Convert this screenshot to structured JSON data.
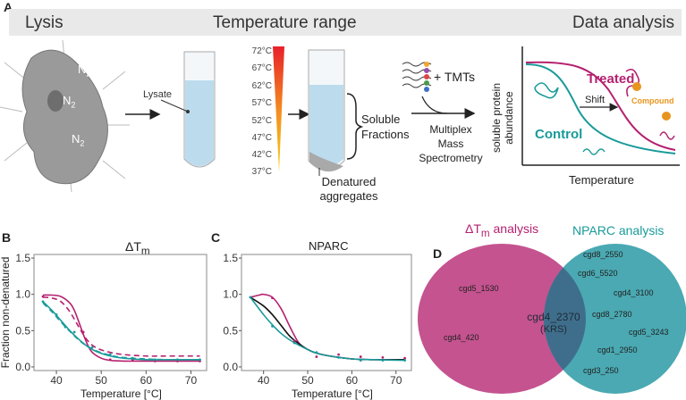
{
  "panels": {
    "a": "A",
    "b": "B",
    "c": "C",
    "d": "D"
  },
  "workflow": {
    "headers": [
      "Lysis",
      "Temperature range",
      "Data analysis"
    ],
    "n2": [
      "N",
      "N",
      "N"
    ],
    "n2_sub": "2",
    "lysate": "Lysate",
    "temperatures": [
      "72°C",
      "67°C",
      "62°C",
      "57°C",
      "52°C",
      "47°C",
      "42°C",
      "37°C"
    ],
    "soluble": [
      "Soluble",
      "Fractions"
    ],
    "denatured": [
      "Denatured",
      "aggregates"
    ],
    "tmts": "+ TMTs",
    "ms": [
      "Multiplex",
      "Mass",
      "Spectrometry"
    ],
    "analysis": {
      "ylabel": [
        "soluble protein",
        "abundance"
      ],
      "xlabel": "Temperature",
      "treated": "Treated",
      "control": "Control",
      "shift": "Shift",
      "compound": "Compound"
    },
    "colors": {
      "treated": "#b5206f",
      "control": "#1a9a9a",
      "compound": "#e8951e"
    }
  },
  "chart_data": [
    {
      "type": "line",
      "title": "ΔT",
      "title_sub": "m",
      "xlabel": "Temperature [°C]",
      "ylabel": "Fraction non-denatured",
      "xlim": [
        35,
        73.5
      ],
      "ylim": [
        -0.05,
        1.55
      ],
      "xticks": [
        40,
        50,
        60,
        70
      ],
      "yticks": [
        "0.0",
        "0.5",
        "1.0",
        "1.5"
      ],
      "series": [
        {
          "name": "treated-fit",
          "color": "#b5206f",
          "dash": false,
          "x": [
            37,
            39,
            41,
            43,
            44,
            45,
            46,
            47,
            48,
            50,
            52,
            55,
            60,
            65,
            72
          ],
          "y": [
            0.99,
            0.99,
            0.97,
            0.88,
            0.78,
            0.62,
            0.45,
            0.3,
            0.2,
            0.12,
            0.09,
            0.08,
            0.08,
            0.08,
            0.08
          ]
        },
        {
          "name": "treated-fit-2",
          "color": "#b5206f",
          "dash": true,
          "x": [
            37,
            39,
            41,
            43,
            45,
            47,
            49,
            52,
            55,
            60,
            65,
            72
          ],
          "y": [
            0.96,
            0.95,
            0.9,
            0.76,
            0.55,
            0.36,
            0.26,
            0.2,
            0.17,
            0.15,
            0.15,
            0.15
          ]
        },
        {
          "name": "control-fit",
          "color": "#1a9a9a",
          "dash": false,
          "x": [
            37,
            39,
            41,
            43,
            45,
            47,
            49,
            52,
            55,
            60,
            65,
            72
          ],
          "y": [
            0.9,
            0.78,
            0.64,
            0.5,
            0.38,
            0.28,
            0.21,
            0.15,
            0.12,
            0.1,
            0.1,
            0.1
          ]
        },
        {
          "name": "control-fit-2",
          "color": "#1a9a9a",
          "dash": true,
          "x": [
            37,
            39,
            41,
            43,
            45,
            47,
            49,
            52,
            55,
            60,
            65,
            72
          ],
          "y": [
            0.88,
            0.76,
            0.62,
            0.49,
            0.37,
            0.28,
            0.22,
            0.16,
            0.13,
            0.11,
            0.1,
            0.1
          ]
        }
      ],
      "points": [
        {
          "color": "#b5206f",
          "x": [
            37,
            46,
            52,
            57,
            62,
            67,
            72
          ],
          "y": [
            0.97,
            0.48,
            0.1,
            0.09,
            0.08,
            0.08,
            0.08
          ]
        },
        {
          "color": "#1a9a9a",
          "x": [
            37,
            40,
            42,
            44,
            48,
            52,
            57,
            62,
            67,
            72
          ],
          "y": [
            0.9,
            0.72,
            0.55,
            0.48,
            0.27,
            0.17,
            0.12,
            0.1,
            0.1,
            0.1
          ]
        }
      ]
    },
    {
      "type": "line",
      "title": "NPARC",
      "xlabel": "Temperature [°C]",
      "xlim": [
        35,
        73.5
      ],
      "ylim": [
        -0.05,
        1.55
      ],
      "xticks": [
        40,
        50,
        60,
        70
      ],
      "yticks": [
        "0.0",
        "0.5",
        "1.0",
        "1.5"
      ],
      "series": [
        {
          "name": "treated-fit",
          "color": "#b5206f",
          "dash": false,
          "x": [
            37,
            39,
            40,
            42,
            44,
            46,
            48,
            50,
            52,
            55,
            60,
            65,
            72
          ],
          "y": [
            0.96,
            0.99,
            1.0,
            0.96,
            0.8,
            0.55,
            0.33,
            0.24,
            0.19,
            0.15,
            0.11,
            0.1,
            0.1
          ]
        },
        {
          "name": "null-fit",
          "color": "#111111",
          "dash": false,
          "x": [
            37,
            40,
            42,
            44,
            46,
            48,
            50,
            52,
            55,
            60,
            65,
            72
          ],
          "y": [
            0.96,
            0.84,
            0.72,
            0.57,
            0.42,
            0.32,
            0.24,
            0.19,
            0.15,
            0.11,
            0.1,
            0.1
          ]
        },
        {
          "name": "control-fit",
          "color": "#1a9a9a",
          "dash": false,
          "x": [
            37,
            40,
            42,
            44,
            46,
            48,
            50,
            52,
            55,
            60,
            65,
            72
          ],
          "y": [
            0.96,
            0.72,
            0.58,
            0.46,
            0.37,
            0.3,
            0.24,
            0.19,
            0.15,
            0.11,
            0.1,
            0.09
          ]
        }
      ],
      "points": [
        {
          "color": "#b5206f",
          "x": [
            42,
            47,
            52,
            57,
            62,
            67,
            72
          ],
          "y": [
            0.95,
            0.36,
            0.14,
            0.17,
            0.14,
            0.13,
            0.12
          ]
        },
        {
          "color": "#1a9a9a",
          "x": [
            37,
            42,
            47,
            52,
            57,
            62,
            67,
            72
          ],
          "y": [
            0.96,
            0.56,
            0.33,
            0.2,
            0.13,
            0.09,
            0.09,
            0.09
          ]
        }
      ]
    }
  ],
  "venn": {
    "left_title": "ΔT",
    "left_title_sub": "m",
    "left_title_rest": " analysis",
    "right_title": "NPARC analysis",
    "left_only": [
      "cgd5_1530",
      "cgd4_420"
    ],
    "shared": [
      "cgd4_2370",
      "(KRS)"
    ],
    "right_only": [
      "cgd8_2550",
      "cgd6_5520",
      "cgd4_3100",
      "cgd8_2780",
      "cgd5_3243",
      "cgd1_2950",
      "cgd3_250"
    ],
    "colors": {
      "left": "#c4538f",
      "right": "#4aa9b2",
      "overlap": "#3f6e8c"
    }
  }
}
